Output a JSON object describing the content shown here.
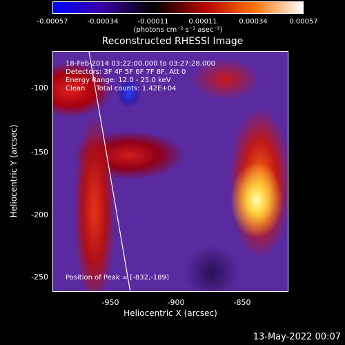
{
  "colorbar": {
    "ticks": [
      "-0.00057",
      "-0.00034",
      "-0.00011",
      "0.00011",
      "0.00034",
      "0.00057"
    ],
    "unit_label": "(photons cm⁻² s⁻¹ asec⁻²)",
    "colors": [
      "#0000ff",
      "#3a00a0",
      "#000000",
      "#b00000",
      "#ff7000",
      "#ffffff"
    ]
  },
  "title": "Reconstructed RHESSI Image",
  "annotation": {
    "line1": "18-Feb-2014 03:22:00.000 to 03:27:28.000",
    "line2": "Detectors: 3F 4F 5F 6F 7F 8F, Att 0",
    "line3": "Energy Range: 12.0 - 25.0 keV",
    "line4": "Clean     Total counts: 1.42E+04",
    "peak": "Position of Peak = [-832,-189]"
  },
  "axes": {
    "ylabel": "Heliocentric Y (arcsec)",
    "xlabel": "Heliocentric X (arcsec)",
    "yticks": [
      "-100",
      "-150",
      "-200",
      "-250"
    ],
    "xticks": [
      "-950",
      "-900",
      "-850"
    ]
  },
  "footer": {
    "datestamp": "13-May-2022 00:07"
  }
}
